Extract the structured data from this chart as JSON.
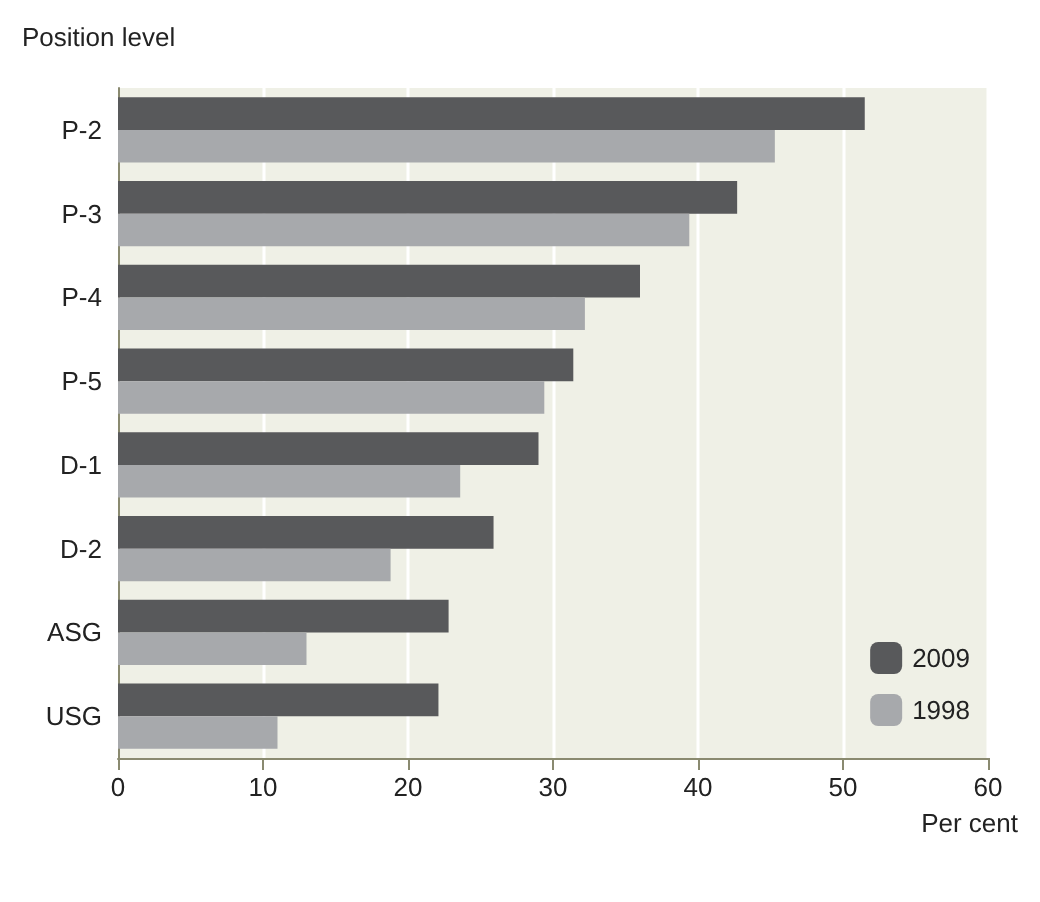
{
  "chart_data": {
    "type": "bar",
    "orientation": "horizontal",
    "ylabel": "Position level",
    "xlabel": "Per cent",
    "categories": [
      "P-2",
      "P-3",
      "P-4",
      "P-5",
      "D-1",
      "D-2",
      "ASG",
      "USG"
    ],
    "series": [
      {
        "name": "2009",
        "color": "#58595b",
        "values": [
          51.5,
          42.7,
          36.0,
          31.4,
          29.0,
          25.9,
          22.8,
          22.1
        ]
      },
      {
        "name": "1998",
        "color": "#a7a9ac",
        "values": [
          45.3,
          39.4,
          32.2,
          29.4,
          23.6,
          18.8,
          13.0,
          11.0
        ]
      }
    ],
    "xlim": [
      0,
      60
    ],
    "xticks": [
      0,
      10,
      20,
      30,
      40,
      50,
      60
    ],
    "grid": "x",
    "legend": "bottom right"
  }
}
